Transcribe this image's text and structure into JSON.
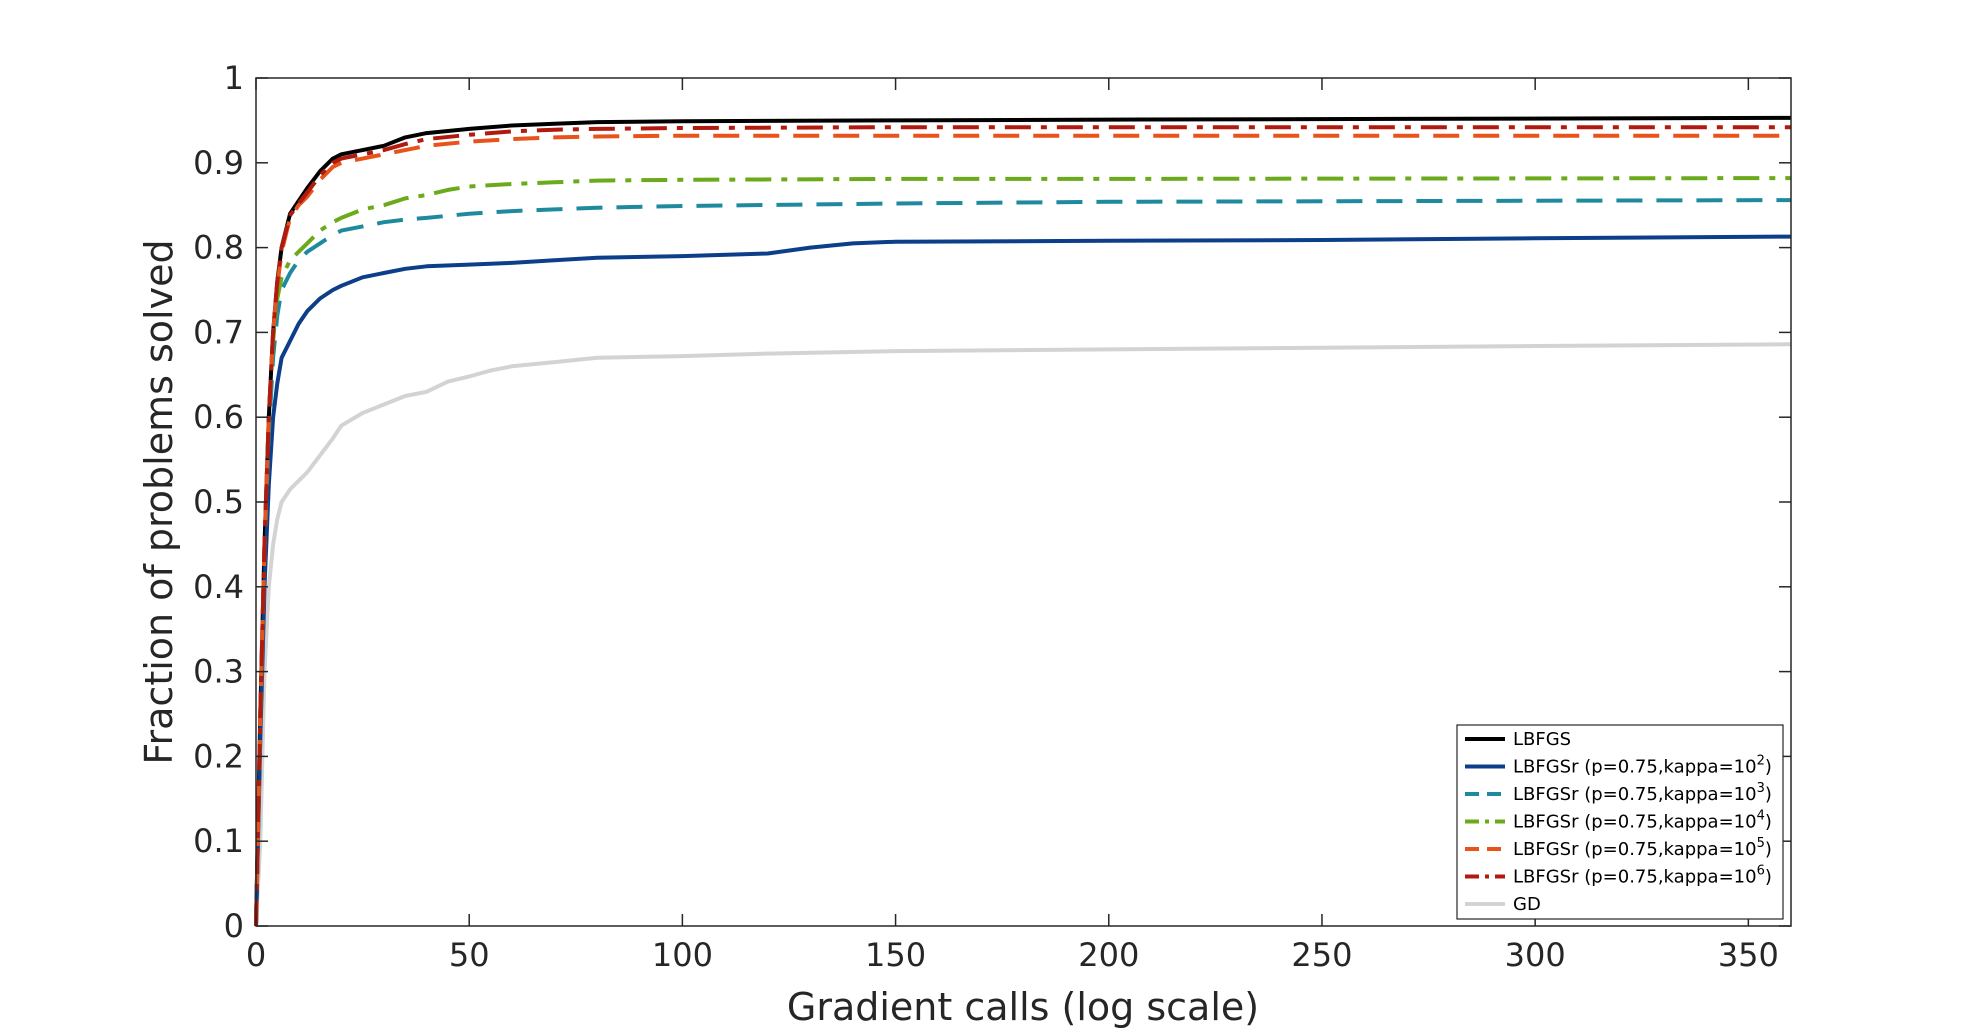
{
  "chart_data": {
    "type": "line",
    "title": "",
    "xlabel": "Gradient calls (log scale)",
    "ylabel": "Fraction of problems solved",
    "xlim": [
      0,
      360
    ],
    "ylim": [
      0,
      1
    ],
    "xticks": [
      0,
      50,
      100,
      150,
      200,
      250,
      300,
      350
    ],
    "yticks": [
      0,
      0.1,
      0.2,
      0.3,
      0.4,
      0.5,
      0.6,
      0.7,
      0.8,
      0.9,
      1
    ],
    "grid": false,
    "legend_position": "bottom-right",
    "series": [
      {
        "name": "LBFGS",
        "label": {
          "prefix": "LBFGS",
          "sup": "",
          "suffix": ""
        },
        "color": "#000000",
        "dash": "solid",
        "x": [
          0,
          1,
          2,
          3,
          4,
          5,
          6,
          8,
          10,
          12,
          15,
          18,
          20,
          25,
          30,
          35,
          40,
          50,
          60,
          70,
          80,
          100,
          150,
          200,
          360
        ],
        "y": [
          0,
          0.25,
          0.45,
          0.6,
          0.7,
          0.76,
          0.8,
          0.84,
          0.855,
          0.87,
          0.89,
          0.905,
          0.91,
          0.915,
          0.92,
          0.93,
          0.935,
          0.94,
          0.944,
          0.946,
          0.948,
          0.949,
          0.95,
          0.951,
          0.953
        ]
      },
      {
        "name": "LBFGSr (p=0.75,kappa=10^2)",
        "label": {
          "prefix": "LBFGSr (p=0.75,kappa=10",
          "sup": "2",
          "suffix": ")"
        },
        "color": "#0c3e8a",
        "dash": "solid",
        "x": [
          0,
          1,
          2,
          3,
          4,
          5,
          6,
          8,
          10,
          12,
          15,
          18,
          20,
          25,
          30,
          35,
          40,
          50,
          60,
          70,
          80,
          100,
          120,
          130,
          140,
          150,
          200,
          250,
          300,
          360
        ],
        "y": [
          0,
          0.22,
          0.4,
          0.52,
          0.6,
          0.64,
          0.67,
          0.69,
          0.71,
          0.725,
          0.74,
          0.75,
          0.755,
          0.765,
          0.77,
          0.775,
          0.778,
          0.78,
          0.782,
          0.785,
          0.788,
          0.79,
          0.793,
          0.8,
          0.805,
          0.807,
          0.808,
          0.809,
          0.811,
          0.813
        ]
      },
      {
        "name": "LBFGSr (p=0.75,kappa=10^3)",
        "label": {
          "prefix": "LBFGSr (p=0.75,kappa=10",
          "sup": "3",
          "suffix": ")"
        },
        "color": "#1f8a9e",
        "dash": "dashed",
        "x": [
          0,
          1,
          2,
          3,
          4,
          5,
          6,
          8,
          10,
          12,
          15,
          18,
          20,
          25,
          30,
          35,
          40,
          50,
          60,
          70,
          80,
          100,
          150,
          200,
          360
        ],
        "y": [
          0,
          0.24,
          0.44,
          0.58,
          0.67,
          0.72,
          0.75,
          0.77,
          0.785,
          0.795,
          0.805,
          0.815,
          0.82,
          0.825,
          0.83,
          0.833,
          0.835,
          0.84,
          0.843,
          0.845,
          0.847,
          0.849,
          0.852,
          0.854,
          0.856
        ]
      },
      {
        "name": "LBFGSr (p=0.75,kappa=10^4)",
        "label": {
          "prefix": "LBFGSr (p=0.75,kappa=10",
          "sup": "4",
          "suffix": ")"
        },
        "color": "#6aaa1b",
        "dash": "dashdot",
        "x": [
          0,
          1,
          2,
          3,
          4,
          5,
          6,
          8,
          10,
          12,
          15,
          18,
          20,
          25,
          30,
          35,
          40,
          45,
          50,
          60,
          70,
          80,
          100,
          150,
          200,
          360
        ],
        "y": [
          0,
          0.24,
          0.45,
          0.6,
          0.69,
          0.74,
          0.765,
          0.785,
          0.795,
          0.805,
          0.82,
          0.83,
          0.835,
          0.845,
          0.85,
          0.858,
          0.862,
          0.868,
          0.872,
          0.875,
          0.877,
          0.879,
          0.88,
          0.881,
          0.881,
          0.882
        ]
      },
      {
        "name": "LBFGSr (p=0.75,kappa=10^5)",
        "label": {
          "prefix": "LBFGSr (p=0.75,kappa=10",
          "sup": "5",
          "suffix": ")"
        },
        "color": "#e8531c",
        "dash": "dashed",
        "x": [
          0,
          1,
          2,
          3,
          4,
          5,
          6,
          8,
          10,
          12,
          15,
          18,
          20,
          25,
          30,
          35,
          40,
          50,
          60,
          70,
          80,
          100,
          150,
          200,
          360
        ],
        "y": [
          0,
          0.25,
          0.45,
          0.6,
          0.7,
          0.755,
          0.795,
          0.835,
          0.85,
          0.86,
          0.88,
          0.895,
          0.9,
          0.905,
          0.91,
          0.915,
          0.92,
          0.925,
          0.928,
          0.93,
          0.931,
          0.932,
          0.932,
          0.932,
          0.932
        ]
      },
      {
        "name": "LBFGSr (p=0.75,kappa=10^6)",
        "label": {
          "prefix": "LBFGSr (p=0.75,kappa=10",
          "sup": "6",
          "suffix": ")"
        },
        "color": "#b01a0f",
        "dash": "dashdot",
        "x": [
          0,
          1,
          2,
          3,
          4,
          5,
          6,
          8,
          10,
          12,
          15,
          18,
          20,
          25,
          30,
          35,
          40,
          50,
          60,
          70,
          80,
          100,
          150,
          200,
          360
        ],
        "y": [
          0,
          0.25,
          0.45,
          0.6,
          0.7,
          0.76,
          0.8,
          0.838,
          0.852,
          0.865,
          0.885,
          0.9,
          0.905,
          0.91,
          0.915,
          0.922,
          0.928,
          0.933,
          0.937,
          0.939,
          0.94,
          0.941,
          0.942,
          0.942,
          0.942
        ]
      },
      {
        "name": "GD",
        "label": {
          "prefix": "GD",
          "sup": "",
          "suffix": ""
        },
        "color": "#d3d3d3",
        "dash": "solid",
        "x": [
          0,
          1,
          2,
          3,
          4,
          5,
          6,
          8,
          10,
          12,
          15,
          18,
          20,
          25,
          30,
          35,
          40,
          45,
          50,
          55,
          60,
          70,
          80,
          100,
          120,
          150,
          200,
          250,
          300,
          360
        ],
        "y": [
          0,
          0.1,
          0.3,
          0.4,
          0.45,
          0.48,
          0.5,
          0.515,
          0.525,
          0.535,
          0.555,
          0.575,
          0.59,
          0.605,
          0.615,
          0.625,
          0.63,
          0.642,
          0.648,
          0.655,
          0.66,
          0.665,
          0.67,
          0.672,
          0.675,
          0.678,
          0.68,
          0.682,
          0.684,
          0.686
        ]
      }
    ]
  }
}
